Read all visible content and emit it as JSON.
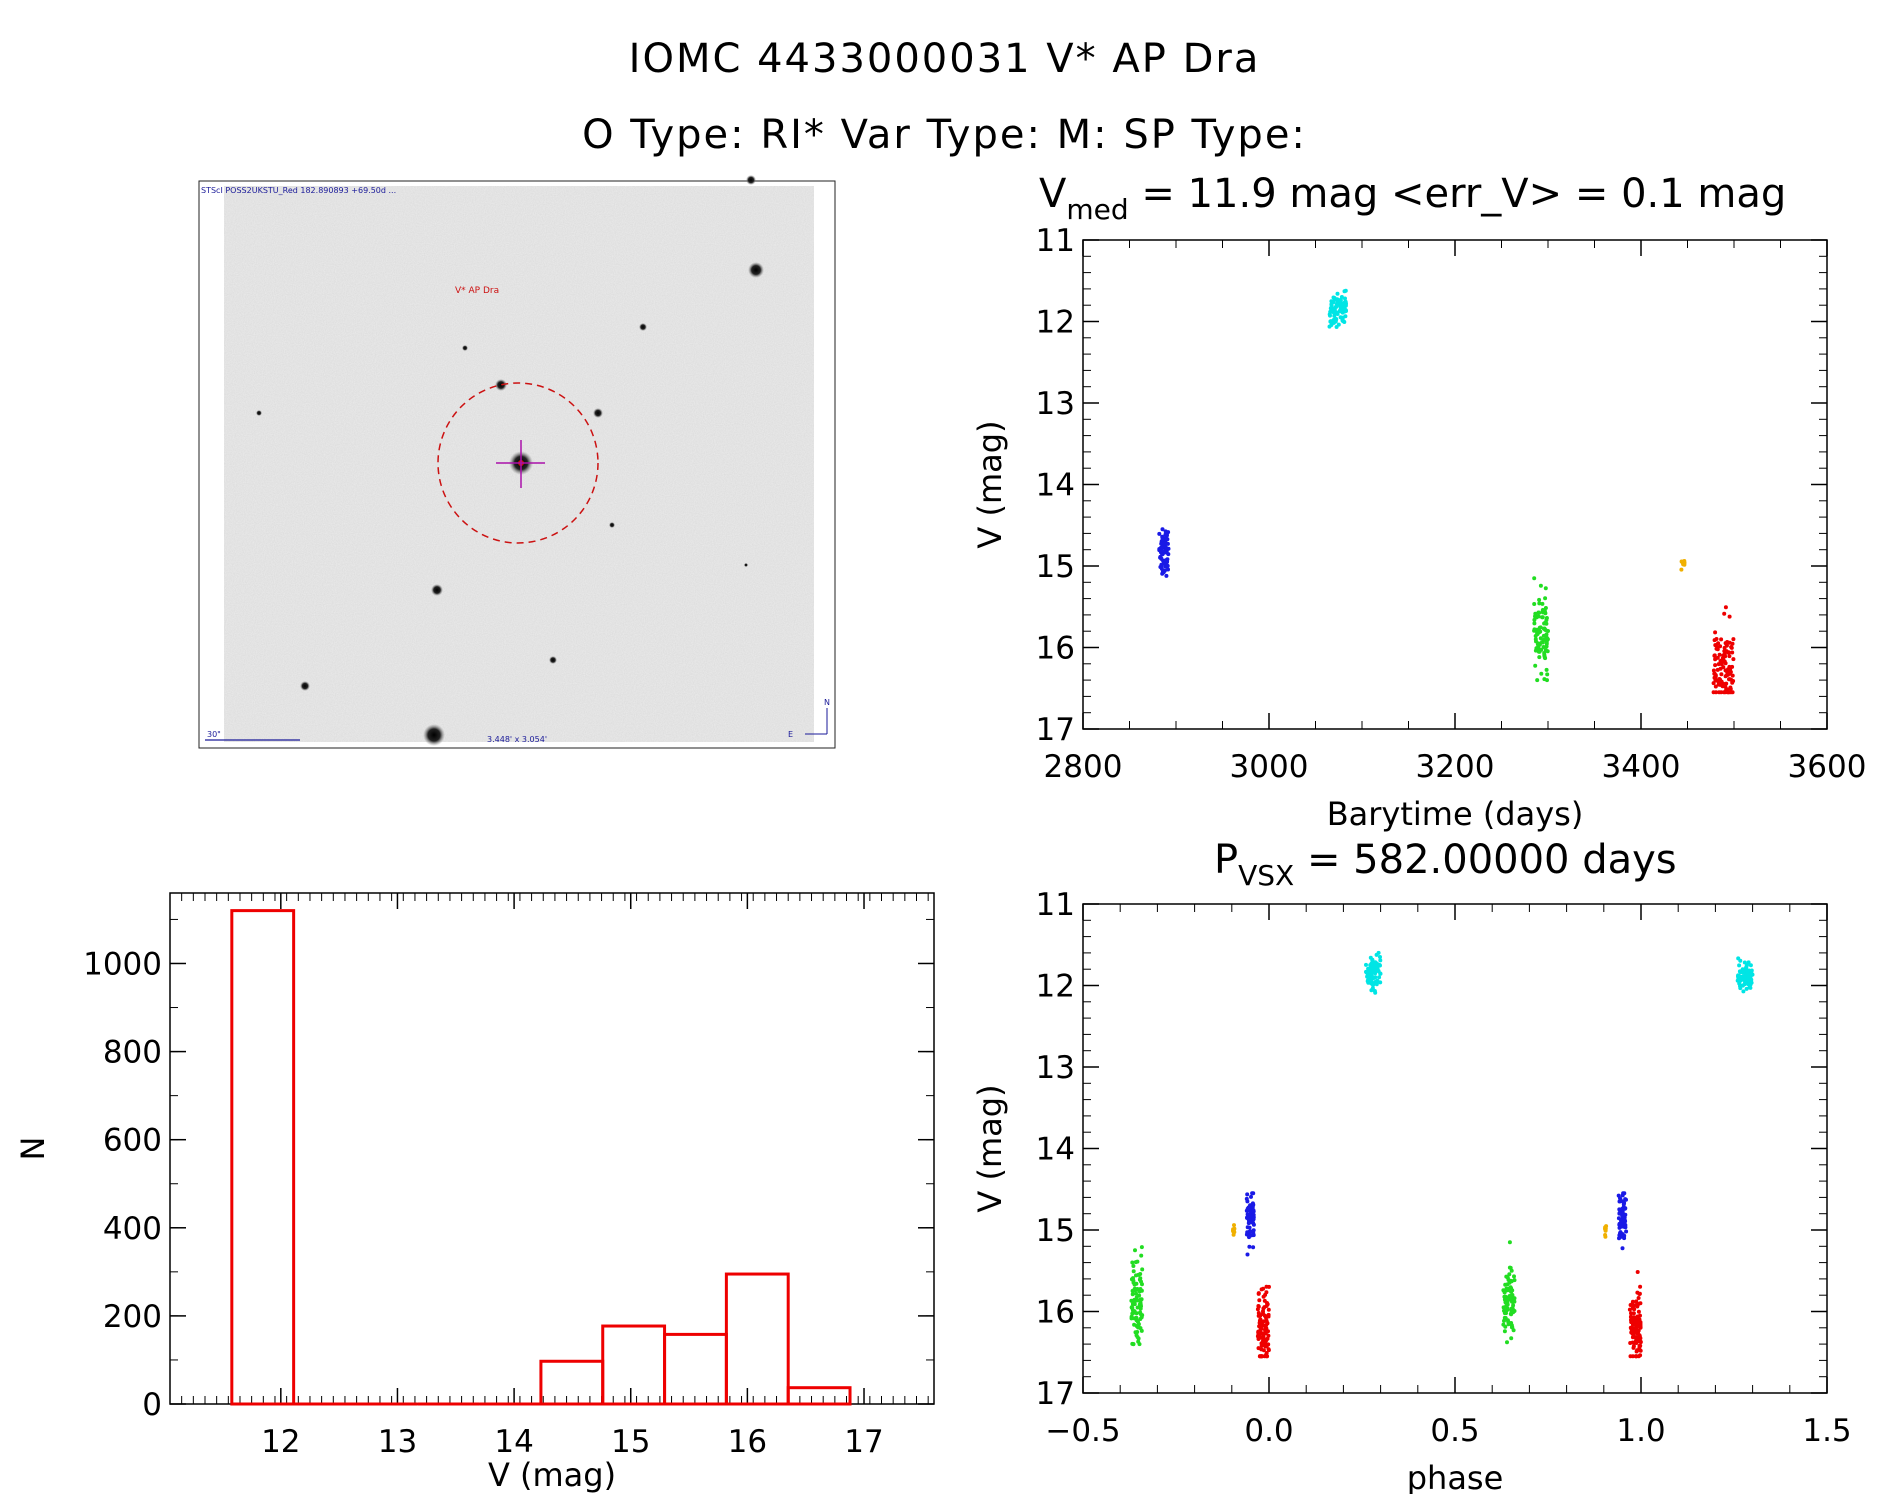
{
  "header": {
    "line1": "IOMC 4433000031    V* AP Dra",
    "line2": "O Type: RI*  Var Type: M:  SP Type:"
  },
  "image": {
    "header_text": "STScI POSS2UKSTU_Red 182.890893 +69.50d ... ",
    "target_label": "V* AP Dra",
    "scale_label": "30\"",
    "fov_label": "3.448' x 3.054'",
    "north_label": "N",
    "east_label": "E"
  },
  "colors": {
    "blue": "#1a1ae6",
    "cyan": "#00e5e5",
    "green": "#22dd22",
    "orange": "#f0b000",
    "red": "#ee0000",
    "hist": "#ee0000",
    "target_circle": "#cc1111",
    "crosshair": "#aa11aa"
  },
  "chart_data": [
    {
      "id": "lightcurve",
      "type": "scatter",
      "title_main": "V",
      "title_sub": "med",
      "title_rest": " = 11.9 mag <err_V> = 0.1 mag",
      "xlabel": "Barytime (days)",
      "ylabel": "V (mag)",
      "xlim": [
        2800,
        3600
      ],
      "ylim": [
        17,
        11
      ],
      "xticks": [
        "2800",
        "3000",
        "3200",
        "3400",
        "3600"
      ],
      "yticks": [
        "11",
        "12",
        "13",
        "14",
        "15",
        "16",
        "17"
      ],
      "series": [
        {
          "name": "blue",
          "color": "blue",
          "x_range": [
            2882,
            2892
          ],
          "y_range": [
            14.55,
            15.3
          ],
          "y_center": 14.85,
          "n": 70
        },
        {
          "name": "cyan",
          "color": "cyan",
          "x_range": [
            3065,
            3083
          ],
          "y_range": [
            11.6,
            12.1
          ],
          "y_center": 11.85,
          "n": 80
        },
        {
          "name": "green",
          "color": "green",
          "x_range": [
            3285,
            3300
          ],
          "y_range": [
            15.15,
            16.4
          ],
          "y_center": 15.85,
          "n": 90
        },
        {
          "name": "orange",
          "color": "orange",
          "x_range": [
            3443,
            3447
          ],
          "y_range": [
            14.9,
            15.1
          ],
          "y_center": 15.0,
          "n": 8
        },
        {
          "name": "red",
          "color": "red",
          "x_range": [
            3478,
            3500
          ],
          "y_range": [
            15.35,
            16.55
          ],
          "y_center": 16.2,
          "n": 110
        }
      ]
    },
    {
      "id": "phased",
      "type": "scatter",
      "title_main": "P",
      "title_sub": "VSX",
      "title_rest": " = 582.00000 days",
      "xlabel": "phase",
      "ylabel": "V (mag)",
      "xlim": [
        -0.5,
        1.5
      ],
      "ylim": [
        17,
        11
      ],
      "xticks": [
        "−0.5",
        "0.0",
        "0.5",
        "1.0",
        "1.5"
      ],
      "yticks": [
        "11",
        "12",
        "13",
        "14",
        "15",
        "16",
        "17"
      ],
      "series": [
        {
          "name": "green",
          "color": "green",
          "phase_range": [
            -0.37,
            -0.34
          ],
          "y_range": [
            15.15,
            16.4
          ],
          "y_center": 15.85,
          "n": 90
        },
        {
          "name": "orange",
          "color": "orange",
          "phase_range": [
            -0.097,
            -0.093
          ],
          "y_range": [
            14.9,
            15.1
          ],
          "y_center": 15.0,
          "n": 8
        },
        {
          "name": "blue",
          "color": "blue",
          "phase_range": [
            -0.06,
            -0.04
          ],
          "y_range": [
            14.55,
            15.3
          ],
          "y_center": 14.85,
          "n": 70
        },
        {
          "name": "red",
          "color": "red",
          "phase_range": [
            -0.03,
            0.0
          ],
          "y_range": [
            15.35,
            16.55
          ],
          "y_center": 16.2,
          "n": 110
        },
        {
          "name": "cyan",
          "color": "cyan",
          "phase_range": [
            0.26,
            0.3
          ],
          "y_range": [
            11.6,
            12.1
          ],
          "y_center": 11.85,
          "n": 80
        }
      ],
      "repeat_offset": 1.0
    },
    {
      "id": "histogram",
      "type": "bar",
      "xlabel": "V (mag)",
      "ylabel": "N",
      "xlim": [
        11.05,
        17.6
      ],
      "ylim": [
        0,
        1160
      ],
      "xticks": [
        "12",
        "13",
        "14",
        "15",
        "16",
        "17"
      ],
      "yticks": [
        "0",
        "200",
        "400",
        "600",
        "800",
        "1000"
      ],
      "bin_width": 0.53,
      "bins": [
        {
          "x0": 11.58,
          "count": 1120
        },
        {
          "x0": 12.11,
          "count": 0
        },
        {
          "x0": 12.64,
          "count": 0
        },
        {
          "x0": 13.17,
          "count": 0
        },
        {
          "x0": 13.7,
          "count": 0
        },
        {
          "x0": 14.23,
          "count": 97
        },
        {
          "x0": 14.76,
          "count": 177
        },
        {
          "x0": 15.29,
          "count": 158
        },
        {
          "x0": 15.82,
          "count": 295
        },
        {
          "x0": 16.35,
          "count": 37
        }
      ]
    }
  ]
}
